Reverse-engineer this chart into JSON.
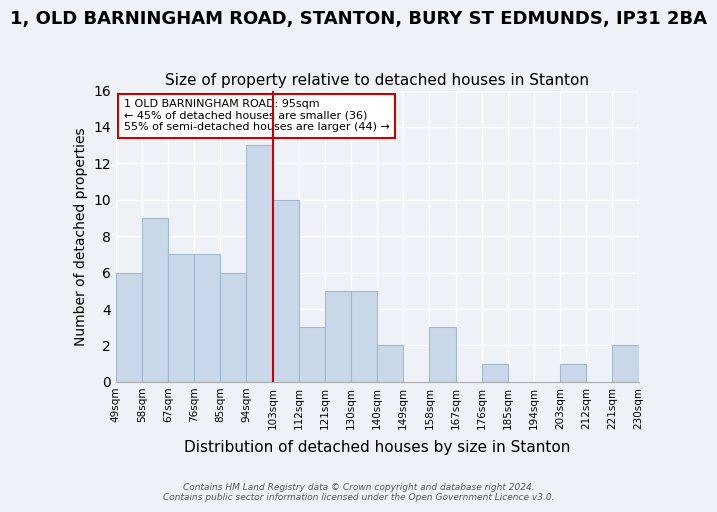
{
  "title": "1, OLD BARNINGHAM ROAD, STANTON, BURY ST EDMUNDS, IP31 2BA",
  "subtitle": "Size of property relative to detached houses in Stanton",
  "xlabel": "Distribution of detached houses by size in Stanton",
  "ylabel": "Number of detached properties",
  "footnote1": "Contains HM Land Registry data © Crown copyright and database right 2024.",
  "footnote2": "Contains public sector information licensed under the Open Government Licence v3.0.",
  "bins": [
    "49sqm",
    "58sqm",
    "67sqm",
    "76sqm",
    "85sqm",
    "94sqm",
    "103sqm",
    "112sqm",
    "121sqm",
    "130sqm",
    "140sqm",
    "149sqm",
    "158sqm",
    "167sqm",
    "176sqm",
    "185sqm",
    "194sqm",
    "203sqm",
    "212sqm",
    "221sqm",
    "230sqm"
  ],
  "values": [
    6,
    9,
    7,
    7,
    6,
    13,
    10,
    3,
    5,
    5,
    2,
    0,
    3,
    0,
    1,
    0,
    0,
    1,
    0,
    2
  ],
  "bar_color": "#c8d8e8",
  "bar_edge_color": "#a0b8d0",
  "vline_color": "#cc0000",
  "annotation_text": "1 OLD BARNINGHAM ROAD: 95sqm\n← 45% of detached houses are smaller (36)\n55% of semi-detached houses are larger (44) →",
  "annotation_box_color": "#ffffff",
  "annotation_box_edge": "#cc0000",
  "ylim": [
    0,
    16
  ],
  "yticks": [
    0,
    2,
    4,
    6,
    8,
    10,
    12,
    14,
    16
  ],
  "title_fontsize": 13,
  "subtitle_fontsize": 11,
  "xlabel_fontsize": 11,
  "ylabel_fontsize": 10,
  "background_color": "#eef2f7"
}
